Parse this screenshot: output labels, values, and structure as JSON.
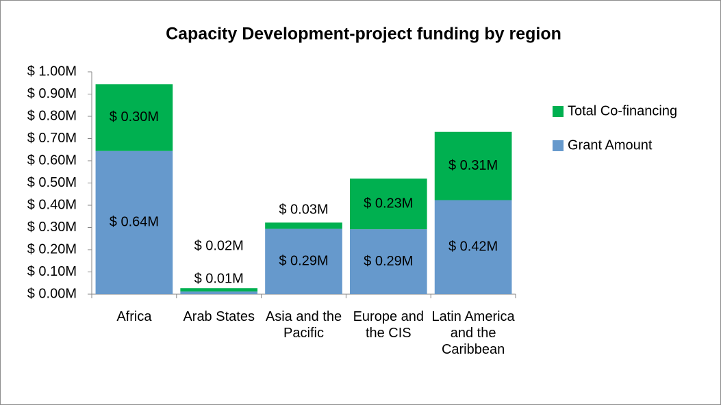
{
  "chart_data": {
    "type": "stacked_bar",
    "title": "Capacity Development-project funding by region",
    "categories": [
      "Africa",
      "Arab States",
      "Asia and the Pacific",
      "Europe and the CIS",
      "Latin America and the Caribbean"
    ],
    "series": [
      {
        "name": "Grant Amount",
        "color": "#6699cc",
        "values": [
          0.644,
          0.012,
          0.294,
          0.292,
          0.423
        ],
        "value_labels": [
          "$ 0.64M",
          "$ 0.01M",
          "$ 0.29M",
          "$ 0.29M",
          "$ 0.42M"
        ]
      },
      {
        "name": "Total Co-financing",
        "color": "#00b050",
        "values": [
          0.3,
          0.015,
          0.028,
          0.228,
          0.307
        ],
        "value_labels": [
          "$ 0.30M",
          "$ 0.02M",
          "$ 0.03M",
          "$ 0.23M",
          "$ 0.31M"
        ]
      }
    ],
    "ylim": [
      0,
      1.0
    ],
    "yticks": [
      {
        "value": 0,
        "label": "$ 0.00M"
      },
      {
        "value": 0.1,
        "label": "$ 0.10M"
      },
      {
        "value": 0.2,
        "label": "$ 0.20M"
      },
      {
        "value": 0.3,
        "label": "$ 0.30M"
      },
      {
        "value": 0.4,
        "label": "$ 0.40M"
      },
      {
        "value": 0.5,
        "label": "$ 0.50M"
      },
      {
        "value": 0.6,
        "label": "$ 0.60M"
      },
      {
        "value": 0.7,
        "label": "$ 0.70M"
      },
      {
        "value": 0.8,
        "label": "$ 0.80M"
      },
      {
        "value": 0.9,
        "label": "$ 0.90M"
      },
      {
        "value": 1.0,
        "label": "$ 1.00M"
      }
    ],
    "legend": "right",
    "grid": false
  }
}
